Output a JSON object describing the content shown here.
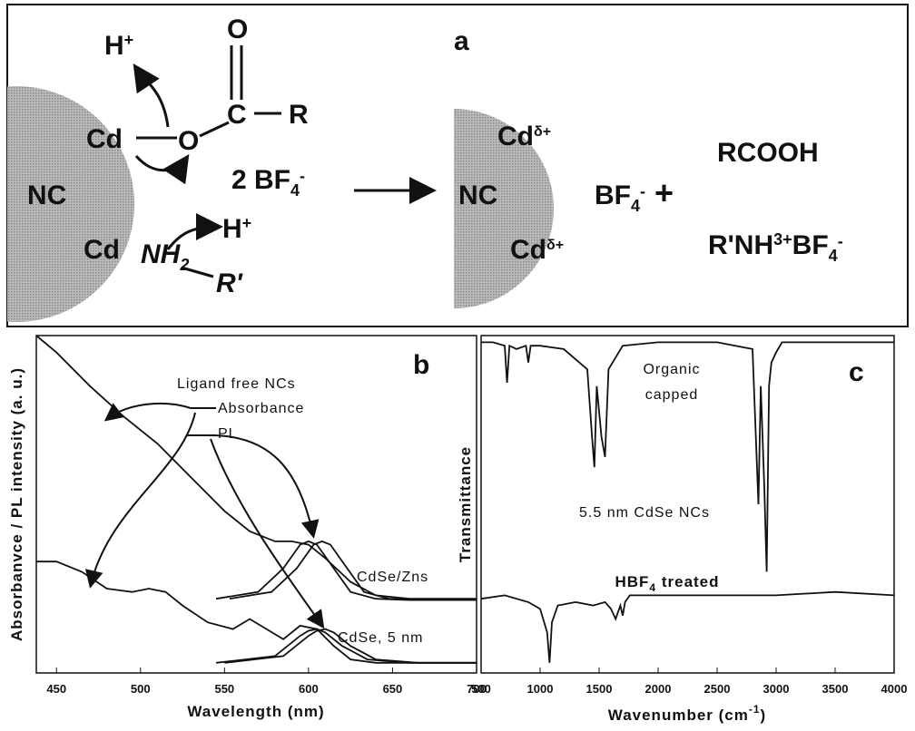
{
  "scheme": {
    "label": "a",
    "texts": {
      "h1": [
        "H",
        "+"
      ],
      "o_top": "O",
      "c": "C",
      "r": "R",
      "cd1": "Cd",
      "o": "O",
      "bf": [
        "2 BF",
        "4",
        "-"
      ],
      "nc1": "NC",
      "cd2": "Cd",
      "nh": [
        "NH",
        "2"
      ],
      "h2": [
        "H",
        "+"
      ],
      "r2": "R'",
      "cd3": [
        "Cd",
        "δ+"
      ],
      "nc2": "NC",
      "bf2": [
        "BF",
        "4",
        "-",
        " +"
      ],
      "rcooh": "RCOOH",
      "salt": [
        "R'NH",
        "3",
        "+",
        "BF",
        "4",
        "-"
      ],
      "cd4": [
        "Cd",
        "δ+"
      ]
    }
  },
  "chart_data": [
    {
      "type": "line",
      "panel": "b",
      "xlabel": "Wavelength (nm)",
      "ylabel": "Absorbanvce / PL intensity (a. u.)",
      "xlim": [
        438,
        700
      ],
      "ylim": [
        0,
        1
      ],
      "xticks": [
        450,
        500,
        550,
        600,
        650,
        700
      ],
      "annotations": [
        "Ligand free NCs",
        "Absorbance",
        "PL",
        "CdSe/Zns",
        "CdSe, 5 nm"
      ],
      "series": [
        {
          "color": "#111",
          "x": [
            438,
            450,
            470,
            490,
            510,
            530,
            550,
            565,
            580,
            590,
            600,
            610,
            625,
            640,
            660,
            680,
            700
          ],
          "values": [
            1.0,
            0.95,
            0.85,
            0.76,
            0.68,
            0.58,
            0.48,
            0.42,
            0.39,
            0.39,
            0.38,
            0.34,
            0.27,
            0.23,
            0.22,
            0.22,
            0.22
          ]
        },
        {
          "color": "#111",
          "x": [
            545,
            570,
            585,
            595,
            600,
            605,
            615,
            625,
            640,
            660,
            700
          ],
          "values": [
            0.22,
            0.24,
            0.31,
            0.38,
            0.39,
            0.38,
            0.31,
            0.24,
            0.22,
            0.216,
            0.216
          ]
        },
        {
          "color": "#111",
          "x": [
            553,
            578,
            593,
            603,
            608,
            613,
            623,
            633,
            648,
            668,
            700
          ],
          "values": [
            0.22,
            0.24,
            0.31,
            0.38,
            0.39,
            0.38,
            0.31,
            0.24,
            0.22,
            0.216,
            0.216
          ]
        },
        {
          "color": "#111",
          "x": [
            438,
            450,
            465,
            480,
            495,
            505,
            515,
            525,
            540,
            555,
            565,
            575,
            585,
            595,
            605,
            615,
            625,
            640,
            660,
            700
          ],
          "values": [
            0.33,
            0.33,
            0.3,
            0.25,
            0.24,
            0.25,
            0.24,
            0.2,
            0.15,
            0.13,
            0.16,
            0.13,
            0.1,
            0.14,
            0.13,
            0.08,
            0.04,
            0.03,
            0.03,
            0.03
          ]
        },
        {
          "color": "#111",
          "x": [
            545,
            580,
            595,
            600,
            605,
            610,
            620,
            635,
            660,
            700
          ],
          "values": [
            0.03,
            0.05,
            0.11,
            0.125,
            0.13,
            0.12,
            0.08,
            0.04,
            0.03,
            0.03
          ]
        },
        {
          "color": "#111",
          "x": [
            550,
            585,
            600,
            605,
            610,
            615,
            625,
            640,
            665,
            700
          ],
          "values": [
            0.03,
            0.05,
            0.11,
            0.125,
            0.13,
            0.12,
            0.08,
            0.04,
            0.03,
            0.03
          ]
        }
      ]
    },
    {
      "type": "line",
      "panel": "c",
      "xlabel": [
        "Wavenumber (cm",
        "-1",
        ")"
      ],
      "ylabel": "Transmittance",
      "xlim": [
        500,
        4000
      ],
      "ylim": [
        0,
        1
      ],
      "xticks": [
        500,
        1000,
        1500,
        2000,
        2500,
        3000,
        3500,
        4000
      ],
      "annotations": [
        "Organic",
        "capped",
        "5.5 nm CdSe NCs",
        [
          "HBF",
          "4",
          " treated"
        ]
      ],
      "series": [
        {
          "color": "#111",
          "x": [
            500,
            600,
            700,
            720,
            740,
            800,
            880,
            900,
            920,
            1000,
            1200,
            1400,
            1440,
            1460,
            1480,
            1520,
            1550,
            1580,
            1700,
            2000,
            2500,
            2800,
            2850,
            2870,
            2900,
            2920,
            2940,
            2960,
            3000,
            3050,
            3200,
            3500,
            4000
          ],
          "values": [
            0.98,
            0.98,
            0.97,
            0.86,
            0.97,
            0.96,
            0.97,
            0.92,
            0.97,
            0.97,
            0.96,
            0.9,
            0.7,
            0.61,
            0.85,
            0.7,
            0.64,
            0.9,
            0.97,
            0.98,
            0.98,
            0.96,
            0.5,
            0.85,
            0.55,
            0.3,
            0.85,
            0.92,
            0.95,
            0.98,
            0.98,
            0.98,
            0.98
          ]
        },
        {
          "color": "#111",
          "x": [
            500,
            700,
            900,
            1000,
            1060,
            1080,
            1100,
            1150,
            1300,
            1450,
            1550,
            1600,
            1640,
            1680,
            1700,
            1720,
            1760,
            2000,
            2500,
            3000,
            3500,
            4000
          ],
          "values": [
            0.22,
            0.23,
            0.21,
            0.19,
            0.12,
            0.03,
            0.15,
            0.2,
            0.21,
            0.2,
            0.21,
            0.19,
            0.16,
            0.2,
            0.17,
            0.21,
            0.23,
            0.23,
            0.23,
            0.23,
            0.24,
            0.23
          ]
        }
      ]
    }
  ]
}
